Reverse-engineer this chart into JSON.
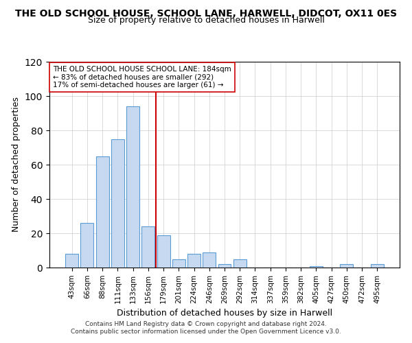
{
  "title": "THE OLD SCHOOL HOUSE, SCHOOL LANE, HARWELL, DIDCOT, OX11 0ES",
  "subtitle": "Size of property relative to detached houses in Harwell",
  "xlabel": "Distribution of detached houses by size in Harwell",
  "ylabel": "Number of detached properties",
  "bar_labels": [
    "43sqm",
    "66sqm",
    "88sqm",
    "111sqm",
    "133sqm",
    "156sqm",
    "179sqm",
    "201sqm",
    "224sqm",
    "246sqm",
    "269sqm",
    "292sqm",
    "314sqm",
    "337sqm",
    "359sqm",
    "382sqm",
    "405sqm",
    "427sqm",
    "450sqm",
    "472sqm",
    "495sqm"
  ],
  "bar_heights": [
    8,
    26,
    65,
    75,
    94,
    24,
    19,
    5,
    8,
    9,
    2,
    5,
    0,
    0,
    0,
    0,
    1,
    0,
    2,
    0,
    2
  ],
  "bar_color": "#c6d9f0",
  "bar_edge_color": "#5b9bd5",
  "ylim": [
    0,
    120
  ],
  "yticks": [
    0,
    20,
    40,
    60,
    80,
    100,
    120
  ],
  "vline_color": "#cc0000",
  "vline_bar_index": 6,
  "annotation_lines": [
    "THE OLD SCHOOL HOUSE SCHOOL LANE: 184sqm",
    "← 83% of detached houses are smaller (292)",
    "17% of semi-detached houses are larger (61) →"
  ],
  "footer_line1": "Contains HM Land Registry data © Crown copyright and database right 2024.",
  "footer_line2": "Contains public sector information licensed under the Open Government Licence v3.0."
}
